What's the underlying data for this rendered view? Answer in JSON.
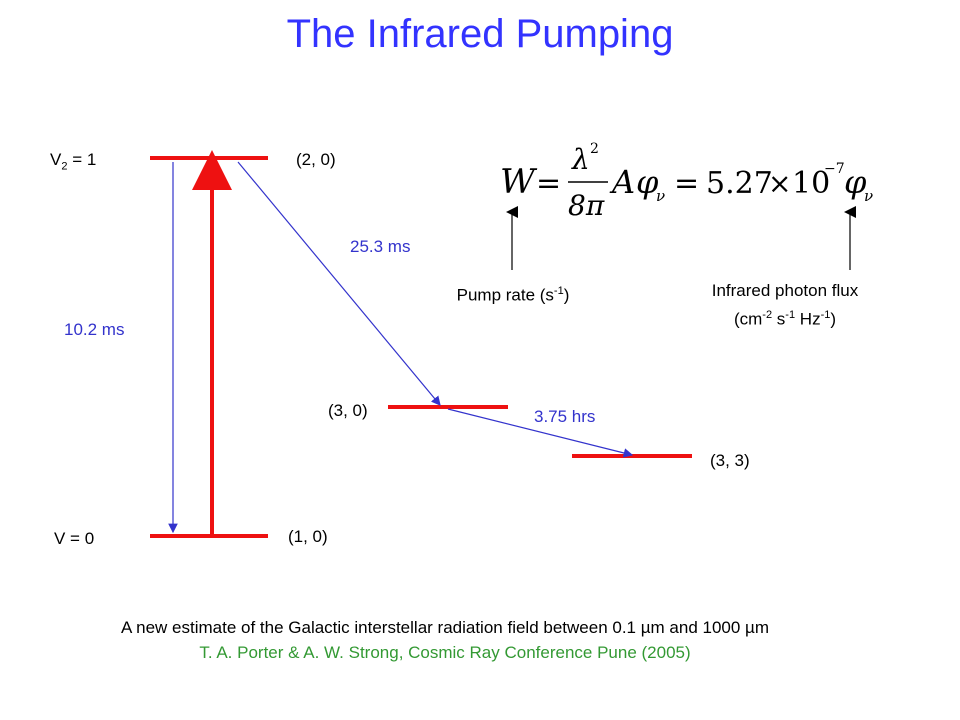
{
  "title": "The Infrared Pumping",
  "levels": {
    "v2_label_main": "V",
    "v2_label_sub": "2",
    "v2_label_rest": " = 1",
    "v0_label": "V = 0",
    "state_20": "(2, 0)",
    "state_10": "(1, 0)",
    "state_30": "(3, 0)",
    "state_33": "(3, 3)"
  },
  "transitions": {
    "t_10": "10.2 ms",
    "t_25": "25.3 ms",
    "t_375": "3.75 hrs"
  },
  "formula": {
    "W": "W",
    "eq": "=",
    "lambda2": "λ",
    "sq": "2",
    "denom": "8π",
    "A": "A",
    "phi": "φ",
    "nu": "ν",
    "eq2": "=",
    "coef": "5.27",
    "times": "×",
    "ten": "10",
    "exp": "−7",
    "phi2": "φ",
    "nu2": "ν"
  },
  "annotations": {
    "pump_rate": "Pump rate (s",
    "pump_rate_exp": "-1",
    "pump_rate_close": ")",
    "flux_line1": "Infrared photon flux",
    "flux_open": "(cm",
    "flux_exp1": "-2",
    "flux_s": " s",
    "flux_exp2": "-1",
    "flux_hz": " Hz",
    "flux_exp3": "-1",
    "flux_close": ")"
  },
  "footer": {
    "line1": "A new estimate of the Galactic interstellar radiation field between 0.1 µm and 1000 µm",
    "line2": "T. A. Porter & A. W. Strong, Cosmic Ray Conference Pune (2005)"
  },
  "colors": {
    "title": "#3333ff",
    "level_line": "#ee1111",
    "transition": "#3333cc",
    "citation": "#339933"
  }
}
